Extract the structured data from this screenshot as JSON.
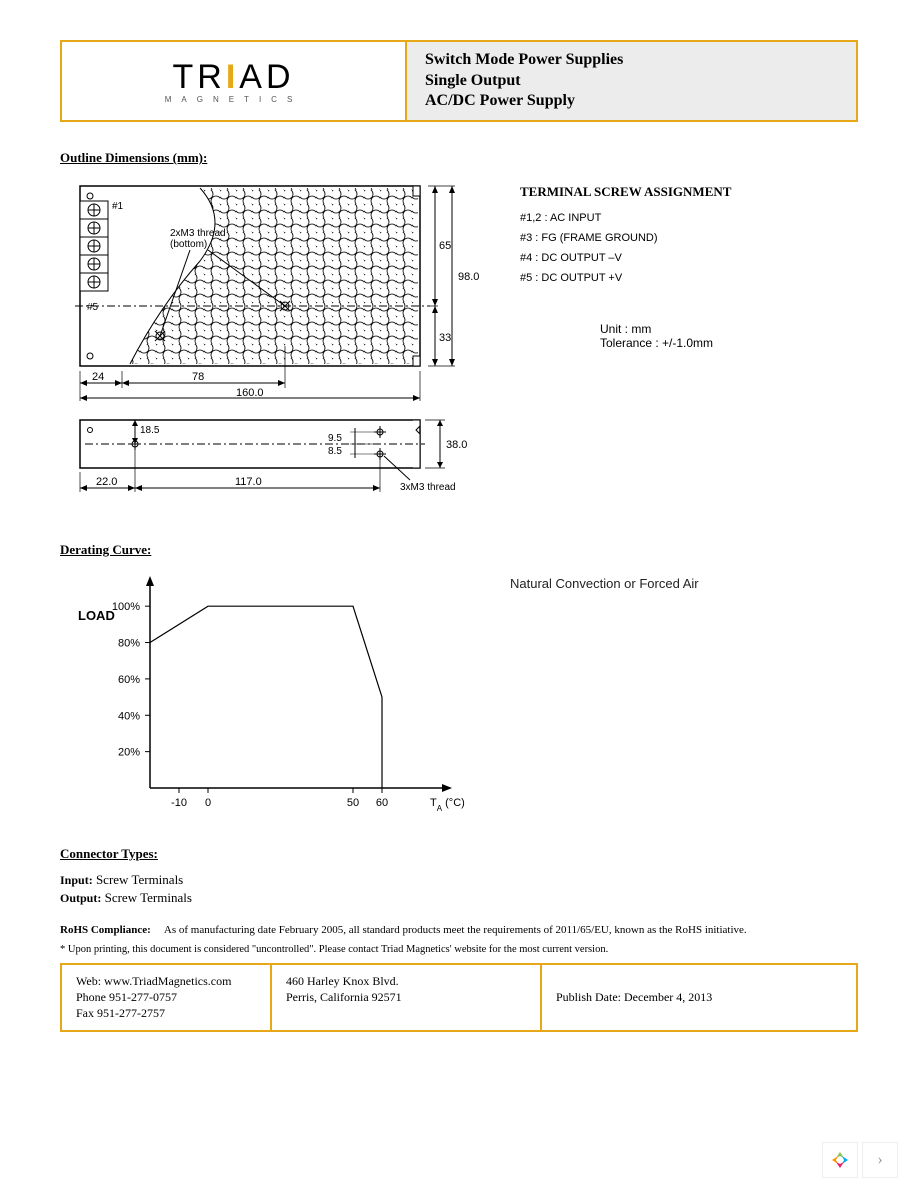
{
  "header": {
    "logo_main": "TRIAD",
    "logo_sub": "MAGNETICS",
    "title_line1": "Switch Mode Power Supplies",
    "title_line2": "Single Output",
    "title_line3": "AC/DC Power Supply"
  },
  "sections": {
    "outline_title": "Outline Dimensions (mm):",
    "derating_title": "Derating Curve:",
    "connector_title": "Connector Types:"
  },
  "outline_diagram_top": {
    "dims": {
      "total_width": "160.0",
      "total_height": "98.0",
      "upper_half_h": "65",
      "lower_half_h": "33",
      "left_offset": "24",
      "inner_span": "78"
    },
    "callouts": {
      "pin1": "#1",
      "pin5": "#5",
      "screw_note": "2xM3 thread (bottom)"
    }
  },
  "outline_diagram_side": {
    "dims": {
      "left_offset": "22.0",
      "inner_span": "117.0",
      "height": "38.0",
      "top_in": "18.5",
      "gap1": "9.5",
      "gap2": "8.5"
    },
    "note": "3xM3 thread"
  },
  "terminal": {
    "heading": "TERMINAL SCREW ASSIGNMENT",
    "rows": [
      "#1,2 : AC INPUT",
      "#3   : FG (FRAME GROUND)",
      "#4   : DC OUTPUT –V",
      "#5   : DC OUTPUT +V"
    ]
  },
  "unit_note": {
    "line1": "Unit : mm",
    "line2": "Tolerance : +/-1.0mm"
  },
  "derating_chart": {
    "type": "line",
    "y_label": "LOAD",
    "x_label": "T",
    "x_label_sub": "A",
    "x_unit": "(°C)",
    "cooling": "Natural Convection or Forced Air",
    "x_ticks": [
      "-10",
      "0",
      "50",
      "60"
    ],
    "y_ticks": [
      "20%",
      "40%",
      "60%",
      "80%",
      "100%"
    ],
    "x_range": [
      -20,
      80
    ],
    "y_range": [
      0,
      110
    ],
    "series": [
      {
        "points": [
          [
            -20,
            80
          ],
          [
            0,
            100
          ],
          [
            50,
            100
          ],
          [
            60,
            50
          ],
          [
            60,
            0
          ]
        ],
        "color": "#000000",
        "width": 1.2
      }
    ],
    "axis_color": "#000000",
    "bg": "#ffffff",
    "label_fontsize": 11
  },
  "connectors": {
    "input_label": "Input:",
    "input_value": "Screw Terminals",
    "output_label": "Output:",
    "output_value": "Screw Terminals"
  },
  "rohs": {
    "label": "RoHS Compliance:",
    "text": "As of manufacturing date February 2005, all standard products meet the requirements of 2011/65/EU, known as the RoHS initiative."
  },
  "disclaimer": "* Upon printing, this document is considered \"uncontrolled\". Please contact Triad Magnetics' website for the most current version.",
  "footer": {
    "web": "Web: www.TriadMagnetics.com",
    "phone": "Phone 951-277-0757",
    "fax": "Fax 951-277-2757",
    "addr1": "460 Harley Knox Blvd.",
    "addr2": "Perris, California 92571",
    "publish": "Publish Date: December 4, 2013"
  },
  "colors": {
    "brand": "#e6a817",
    "text": "#000000",
    "header_bg": "#ececec"
  }
}
